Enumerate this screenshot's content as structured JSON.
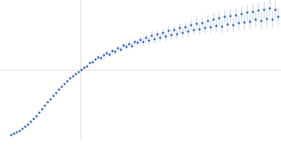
{
  "chart_data": {
    "type": "scatter",
    "color": "#3a6bc8",
    "error_color": "#a9bfe6",
    "grid_color": "#d8d8d8",
    "xlim": [
      0,
      400
    ],
    "ylim": [
      0,
      200
    ],
    "reference_lines": {
      "x": 115,
      "y": 100
    },
    "x": [
      16,
      20,
      24,
      28,
      32,
      36,
      40,
      44,
      48,
      52,
      56,
      60,
      64,
      68,
      72,
      76,
      80,
      84,
      88,
      92,
      96,
      100,
      104,
      108,
      112,
      116,
      120,
      124,
      128,
      132,
      136,
      140,
      144,
      148,
      152,
      156,
      160,
      164,
      168,
      172,
      176,
      180,
      184,
      188,
      192,
      196,
      200,
      204,
      208,
      212,
      216,
      220,
      224,
      228,
      232,
      236,
      240,
      244,
      248,
      252,
      256,
      260,
      264,
      268,
      272,
      276,
      280,
      284,
      288,
      292,
      296,
      300,
      304,
      308,
      312,
      316,
      320,
      324,
      328,
      332,
      336,
      340,
      344,
      348,
      352,
      356,
      360,
      364,
      368,
      372,
      376,
      380,
      384,
      388,
      392,
      396
    ],
    "series": [
      {
        "values": [
          7,
          9,
          11,
          13,
          16,
          19,
          22,
          26,
          30,
          34,
          39,
          44,
          49,
          54,
          58,
          63,
          67,
          72,
          76,
          80,
          84,
          88,
          91,
          94,
          97,
          100,
          103,
          105,
          110,
          111,
          115,
          118,
          117,
          121,
          124,
          122,
          127,
          126,
          131,
          129,
          135,
          133,
          137,
          134,
          140,
          139,
          143,
          140,
          146,
          142,
          149,
          144,
          151,
          146,
          153,
          148,
          156,
          150,
          157,
          151,
          160,
          153,
          161,
          155,
          164,
          157,
          166,
          158,
          167,
          160,
          170,
          161,
          172,
          163,
          174,
          162,
          176,
          165,
          177,
          164,
          178,
          167,
          180,
          168,
          182,
          169,
          183,
          172,
          185,
          170,
          186,
          173,
          188,
          172,
          186,
          176
        ],
        "errors": [
          0.5,
          0.5,
          0.5,
          0.5,
          0.5,
          0.5,
          0.5,
          0.5,
          0.5,
          0.5,
          0.5,
          0.5,
          0.5,
          0.5,
          0.5,
          0.5,
          0.5,
          0.5,
          0.5,
          0.5,
          0.5,
          1,
          1,
          1,
          1.5,
          1.5,
          1.5,
          2,
          2,
          2,
          2,
          2.5,
          2.5,
          2.5,
          3,
          3,
          3,
          3,
          3.5,
          3.5,
          3.5,
          4,
          4,
          4,
          4,
          4.5,
          5,
          5,
          5,
          5.5,
          5.5,
          5.5,
          6,
          6,
          6,
          6,
          6.5,
          6.5,
          6.5,
          7,
          7,
          7,
          7,
          7.5,
          7.5,
          7.5,
          8,
          8,
          8,
          8,
          8.5,
          9,
          9,
          9,
          9.5,
          9.5,
          9.5,
          10,
          10,
          10,
          10,
          10.5,
          10.5,
          10.5,
          11,
          11,
          11,
          11,
          11.5,
          11.5,
          11.5,
          12,
          12,
          12,
          12,
          12.5
        ]
      }
    ]
  }
}
